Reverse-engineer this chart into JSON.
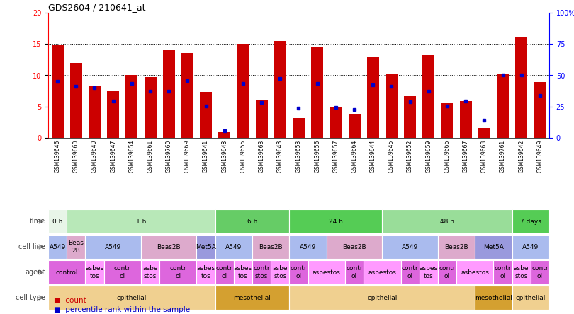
{
  "title": "GDS2604 / 210641_at",
  "sample_ids": [
    "GSM139646",
    "GSM139660",
    "GSM139640",
    "GSM139647",
    "GSM139654",
    "GSM139661",
    "GSM139760",
    "GSM139669",
    "GSM139641",
    "GSM139648",
    "GSM139655",
    "GSM139663",
    "GSM139643",
    "GSM139653",
    "GSM139656",
    "GSM139657",
    "GSM139664",
    "GSM139644",
    "GSM139645",
    "GSM139652",
    "GSM139659",
    "GSM139666",
    "GSM139667",
    "GSM139668",
    "GSM139761",
    "GSM139642",
    "GSM139649"
  ],
  "bar_heights": [
    14.8,
    12.0,
    8.3,
    7.5,
    10.0,
    9.7,
    14.1,
    13.6,
    7.4,
    1.0,
    15.0,
    6.1,
    15.5,
    3.2,
    14.5,
    5.0,
    3.8,
    13.0,
    10.2,
    6.7,
    13.2,
    5.5,
    5.9,
    1.6,
    10.2,
    16.2,
    8.9
  ],
  "blue_y": [
    9.0,
    8.3,
    8.0,
    5.9,
    8.7,
    7.5,
    7.5,
    9.2,
    5.1,
    1.1,
    8.7,
    5.7,
    9.5,
    4.8,
    8.7,
    4.9,
    4.5,
    8.5,
    8.3,
    5.8,
    7.5,
    5.1,
    5.9,
    2.8,
    10.1,
    10.0,
    6.8
  ],
  "bar_color": "#cc0000",
  "blue_color": "#0000cc",
  "time_groups": [
    {
      "label": "0 h",
      "start": 0,
      "end": 1,
      "color": "#e8f5e8"
    },
    {
      "label": "1 h",
      "start": 1,
      "end": 9,
      "color": "#b8e8b8"
    },
    {
      "label": "6 h",
      "start": 9,
      "end": 13,
      "color": "#66cc66"
    },
    {
      "label": "24 h",
      "start": 13,
      "end": 18,
      "color": "#55cc55"
    },
    {
      "label": "48 h",
      "start": 18,
      "end": 25,
      "color": "#99dd99"
    },
    {
      "label": "7 days",
      "start": 25,
      "end": 27,
      "color": "#55cc55"
    }
  ],
  "cellline_groups": [
    {
      "label": "A549",
      "start": 0,
      "end": 1,
      "color": "#aabbee"
    },
    {
      "label": "Beas\n2B",
      "start": 1,
      "end": 2,
      "color": "#ddaacc"
    },
    {
      "label": "A549",
      "start": 2,
      "end": 5,
      "color": "#aabbee"
    },
    {
      "label": "Beas2B",
      "start": 5,
      "end": 8,
      "color": "#ddaacc"
    },
    {
      "label": "Met5A",
      "start": 8,
      "end": 9,
      "color": "#9999dd"
    },
    {
      "label": "A549",
      "start": 9,
      "end": 11,
      "color": "#aabbee"
    },
    {
      "label": "Beas2B",
      "start": 11,
      "end": 13,
      "color": "#ddaacc"
    },
    {
      "label": "A549",
      "start": 13,
      "end": 15,
      "color": "#aabbee"
    },
    {
      "label": "Beas2B",
      "start": 15,
      "end": 18,
      "color": "#ddaacc"
    },
    {
      "label": "A549",
      "start": 18,
      "end": 21,
      "color": "#aabbee"
    },
    {
      "label": "Beas2B",
      "start": 21,
      "end": 23,
      "color": "#ddaacc"
    },
    {
      "label": "Met5A",
      "start": 23,
      "end": 25,
      "color": "#9999dd"
    },
    {
      "label": "A549",
      "start": 25,
      "end": 27,
      "color": "#aabbee"
    }
  ],
  "agent_groups": [
    {
      "label": "control",
      "start": 0,
      "end": 2,
      "color": "#dd66dd"
    },
    {
      "label": "asbes\ntos",
      "start": 2,
      "end": 3,
      "color": "#ff99ff"
    },
    {
      "label": "contr\nol",
      "start": 3,
      "end": 5,
      "color": "#dd66dd"
    },
    {
      "label": "asbe\nstos",
      "start": 5,
      "end": 6,
      "color": "#ff99ff"
    },
    {
      "label": "contr\nol",
      "start": 6,
      "end": 8,
      "color": "#dd66dd"
    },
    {
      "label": "asbes\ntos",
      "start": 8,
      "end": 9,
      "color": "#ff99ff"
    },
    {
      "label": "contr\nol",
      "start": 9,
      "end": 10,
      "color": "#dd66dd"
    },
    {
      "label": "asbes\ntos",
      "start": 10,
      "end": 11,
      "color": "#ff99ff"
    },
    {
      "label": "contr\nstos",
      "start": 11,
      "end": 12,
      "color": "#dd66dd"
    },
    {
      "label": "asbe\nstos",
      "start": 12,
      "end": 13,
      "color": "#ff99ff"
    },
    {
      "label": "contr\nol",
      "start": 13,
      "end": 14,
      "color": "#dd66dd"
    },
    {
      "label": "asbestos",
      "start": 14,
      "end": 16,
      "color": "#ff99ff"
    },
    {
      "label": "contr\nol",
      "start": 16,
      "end": 17,
      "color": "#dd66dd"
    },
    {
      "label": "asbestos",
      "start": 17,
      "end": 19,
      "color": "#ff99ff"
    },
    {
      "label": "contr\nol",
      "start": 19,
      "end": 20,
      "color": "#dd66dd"
    },
    {
      "label": "asbes\ntos",
      "start": 20,
      "end": 21,
      "color": "#ff99ff"
    },
    {
      "label": "contr\nol",
      "start": 21,
      "end": 22,
      "color": "#dd66dd"
    },
    {
      "label": "asbestos",
      "start": 22,
      "end": 24,
      "color": "#ff99ff"
    },
    {
      "label": "contr\nol",
      "start": 24,
      "end": 25,
      "color": "#dd66dd"
    },
    {
      "label": "asbe\nstos",
      "start": 25,
      "end": 26,
      "color": "#ff99ff"
    },
    {
      "label": "contr\nol",
      "start": 26,
      "end": 27,
      "color": "#dd66dd"
    }
  ],
  "celltype_groups": [
    {
      "label": "epithelial",
      "start": 0,
      "end": 9,
      "color": "#f0d090"
    },
    {
      "label": "mesothelial",
      "start": 9,
      "end": 13,
      "color": "#d4a030"
    },
    {
      "label": "epithelial",
      "start": 13,
      "end": 23,
      "color": "#f0d090"
    },
    {
      "label": "mesothelial",
      "start": 23,
      "end": 25,
      "color": "#d4a030"
    },
    {
      "label": "epithelial",
      "start": 25,
      "end": 27,
      "color": "#f0d090"
    }
  ]
}
